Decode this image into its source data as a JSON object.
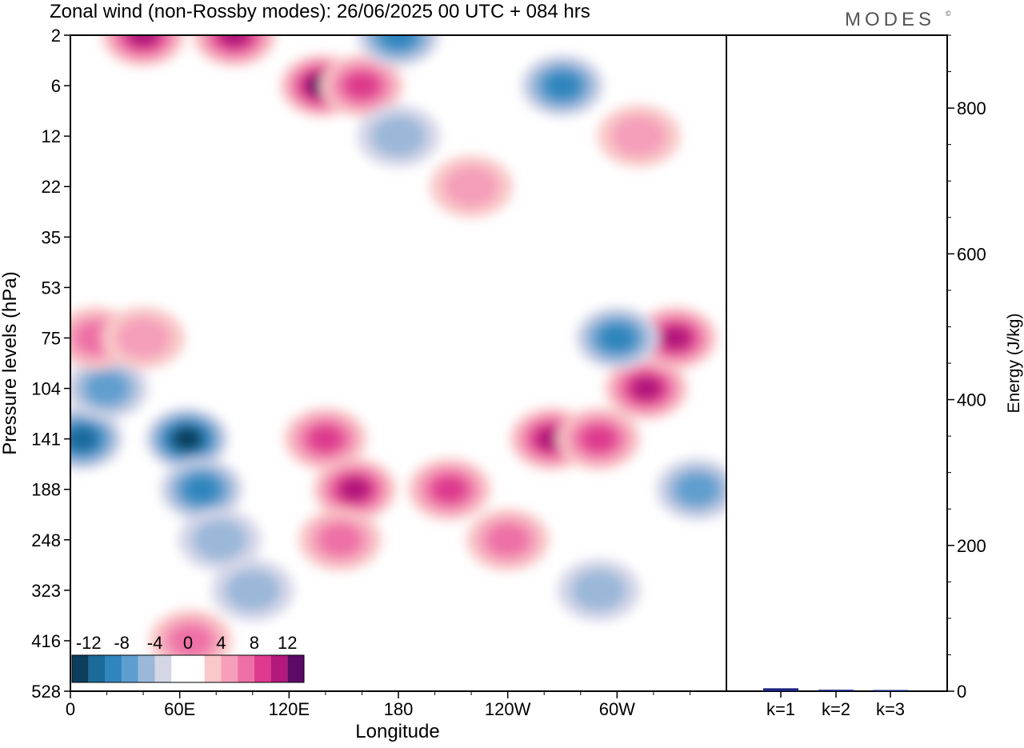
{
  "brand": "MODES",
  "brand_mark": "©",
  "colors": {
    "palette": [
      "#0b3d5c",
      "#1a6b9a",
      "#2f86bd",
      "#5e9ecf",
      "#9bb8d9",
      "#d4d6e8",
      "#ffffff",
      "#ffffff",
      "#f9c8c8",
      "#f59fba",
      "#ee6fa6",
      "#de3a8e",
      "#b3187b",
      "#5b0a66"
    ],
    "line": "#000000",
    "bar": "#1a237e"
  },
  "chart_data": [
    {
      "type": "heatmap",
      "title": "Zonal wind (non-Rossby modes):  26/06/2025  00 UTC  + 084 hrs",
      "xlabel": "Longitude",
      "ylabel": "Pressure levels (hPa)",
      "x_ticks": [
        {
          "lon": 0,
          "label": "0"
        },
        {
          "lon": 60,
          "label": "60E"
        },
        {
          "lon": 120,
          "label": "120E"
        },
        {
          "lon": 180,
          "label": "180"
        },
        {
          "lon": 240,
          "label": "120W"
        },
        {
          "lon": 300,
          "label": "60W"
        }
      ],
      "xlim": [
        0,
        360
      ],
      "y_levels": [
        "2",
        "6",
        "12",
        "22",
        "35",
        "53",
        "75",
        "104",
        "141",
        "188",
        "248",
        "323",
        "416",
        "528"
      ],
      "colorbar": {
        "labels": [
          "-12",
          "-8",
          "-4",
          "0",
          "4",
          "8",
          "12"
        ],
        "levels": [
          -14,
          -12,
          -10,
          -8,
          -6,
          -4,
          -2,
          0,
          2,
          4,
          6,
          8,
          10,
          12,
          14
        ]
      },
      "features": [
        {
          "lon": 6,
          "level": "141",
          "value": -10
        },
        {
          "lon": 20,
          "level": "104",
          "value": -6
        },
        {
          "lon": 64,
          "level": "141",
          "value": -12
        },
        {
          "lon": 72,
          "level": "188",
          "value": -8
        },
        {
          "lon": 82,
          "level": "248",
          "value": -4
        },
        {
          "lon": 100,
          "level": "323",
          "value": -4
        },
        {
          "lon": 14,
          "level": "75",
          "value": 6
        },
        {
          "lon": 40,
          "level": "75",
          "value": 4
        },
        {
          "lon": 66,
          "level": "416",
          "value": 6
        },
        {
          "lon": 140,
          "level": "141",
          "value": 8
        },
        {
          "lon": 156,
          "level": "188",
          "value": 10
        },
        {
          "lon": 148,
          "level": "248",
          "value": 6
        },
        {
          "lon": 208,
          "level": "188",
          "value": 8
        },
        {
          "lon": 240,
          "level": "248",
          "value": 6
        },
        {
          "lon": 264,
          "level": "141",
          "value": 10
        },
        {
          "lon": 290,
          "level": "141",
          "value": 8
        },
        {
          "lon": 316,
          "level": "104",
          "value": 10
        },
        {
          "lon": 332,
          "level": "75",
          "value": 10
        },
        {
          "lon": 300,
          "level": "75",
          "value": -8
        },
        {
          "lon": 344,
          "level": "188",
          "value": -6
        },
        {
          "lon": 290,
          "level": "323",
          "value": -4
        },
        {
          "lon": 220,
          "level": "22",
          "value": 4
        },
        {
          "lon": 312,
          "level": "12",
          "value": 4
        },
        {
          "lon": 40,
          "level": "2",
          "value": 10
        },
        {
          "lon": 90,
          "level": "2",
          "value": 10
        },
        {
          "lon": 138,
          "level": "6",
          "value": 12
        },
        {
          "lon": 160,
          "level": "6",
          "value": 8
        },
        {
          "lon": 180,
          "level": "2",
          "value": -8
        },
        {
          "lon": 270,
          "level": "6",
          "value": -8
        },
        {
          "lon": 180,
          "level": "12",
          "value": -4
        }
      ]
    },
    {
      "type": "bar",
      "ylabel": "Energy (J/kg)",
      "categories": [
        "k=1",
        "k=2",
        "k=3"
      ],
      "values": [
        4,
        2,
        1.5
      ],
      "ylim": [
        0,
        900
      ],
      "y_ticks": [
        0,
        200,
        400,
        600,
        800
      ]
    }
  ]
}
